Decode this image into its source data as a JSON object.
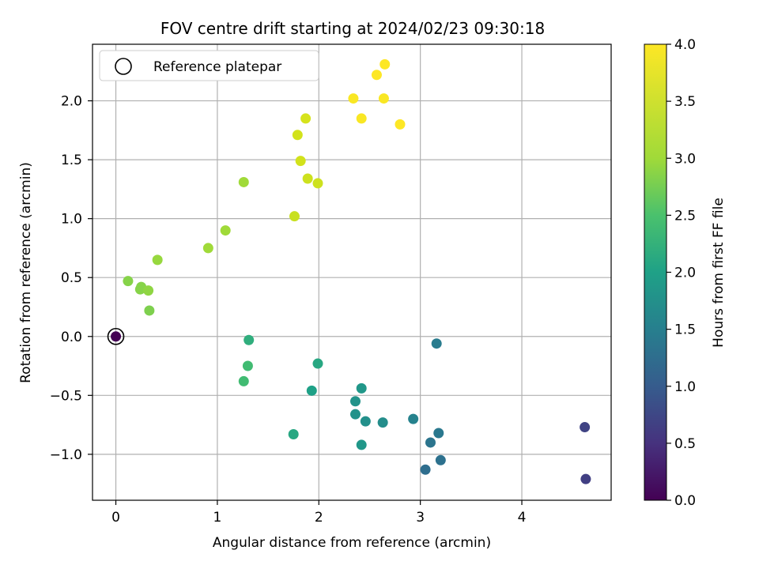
{
  "chart_data": {
    "type": "scatter",
    "title": "FOV centre drift starting at 2024/02/23 09:30:18",
    "xlabel": "Angular distance from reference (arcmin)",
    "ylabel": "Rotation from reference (arcmin)",
    "xlim": [
      -0.23,
      4.88
    ],
    "ylim": [
      -1.39,
      2.48
    ],
    "xticks": [
      0,
      1,
      2,
      3,
      4
    ],
    "xtick_labels": [
      "0",
      "1",
      "2",
      "3",
      "4"
    ],
    "yticks": [
      -1.0,
      -0.5,
      0.0,
      0.5,
      1.0,
      1.5,
      2.0
    ],
    "ytick_labels": [
      "−1.0",
      "−0.5",
      "0.0",
      "0.5",
      "1.0",
      "1.5",
      "2.0"
    ],
    "grid": true,
    "legend": {
      "position": "top-left",
      "entries": [
        "Reference platepar"
      ]
    },
    "reference_point": {
      "x": 0.0,
      "y": 0.0
    },
    "colorbar": {
      "label": "Hours from first FF file",
      "colormap": "viridis",
      "range": [
        0.0,
        4.0
      ],
      "ticks": [
        0.0,
        0.5,
        1.0,
        1.5,
        2.0,
        2.5,
        3.0,
        3.5,
        4.0
      ],
      "tick_labels": [
        "0.0",
        "0.5",
        "1.0",
        "1.5",
        "2.0",
        "2.5",
        "3.0",
        "3.5",
        "4.0"
      ]
    },
    "points": [
      {
        "x": 0.0,
        "y": 0.0,
        "c": 0.0
      },
      {
        "x": 4.63,
        "y": -1.21,
        "c": 0.65
      },
      {
        "x": 4.62,
        "y": -0.77,
        "c": 0.7
      },
      {
        "x": 3.05,
        "y": -1.13,
        "c": 1.25
      },
      {
        "x": 3.2,
        "y": -1.05,
        "c": 1.3
      },
      {
        "x": 3.1,
        "y": -0.9,
        "c": 1.35
      },
      {
        "x": 3.18,
        "y": -0.82,
        "c": 1.4
      },
      {
        "x": 3.16,
        "y": -0.06,
        "c": 1.45
      },
      {
        "x": 2.93,
        "y": -0.7,
        "c": 1.55
      },
      {
        "x": 2.63,
        "y": -0.73,
        "c": 1.7
      },
      {
        "x": 2.46,
        "y": -0.72,
        "c": 1.75
      },
      {
        "x": 2.36,
        "y": -0.66,
        "c": 1.78
      },
      {
        "x": 2.36,
        "y": -0.55,
        "c": 1.8
      },
      {
        "x": 2.42,
        "y": -0.92,
        "c": 1.85
      },
      {
        "x": 2.42,
        "y": -0.44,
        "c": 1.85
      },
      {
        "x": 1.93,
        "y": -0.46,
        "c": 2.0
      },
      {
        "x": 1.99,
        "y": -0.23,
        "c": 2.1
      },
      {
        "x": 1.75,
        "y": -0.83,
        "c": 2.1
      },
      {
        "x": 1.31,
        "y": -0.03,
        "c": 2.2
      },
      {
        "x": 1.3,
        "y": -0.25,
        "c": 2.4
      },
      {
        "x": 1.26,
        "y": -0.38,
        "c": 2.4
      },
      {
        "x": 0.33,
        "y": 0.22,
        "c": 2.8
      },
      {
        "x": 0.12,
        "y": 0.47,
        "c": 2.85
      },
      {
        "x": 0.24,
        "y": 0.4,
        "c": 2.85
      },
      {
        "x": 0.25,
        "y": 0.42,
        "c": 2.85
      },
      {
        "x": 0.32,
        "y": 0.39,
        "c": 2.9
      },
      {
        "x": 0.41,
        "y": 0.65,
        "c": 2.95
      },
      {
        "x": 0.91,
        "y": 0.75,
        "c": 3.0
      },
      {
        "x": 1.08,
        "y": 0.9,
        "c": 3.0
      },
      {
        "x": 1.26,
        "y": 1.31,
        "c": 3.0
      },
      {
        "x": 1.76,
        "y": 1.02,
        "c": 3.4
      },
      {
        "x": 1.99,
        "y": 1.3,
        "c": 3.45
      },
      {
        "x": 1.89,
        "y": 1.34,
        "c": 3.45
      },
      {
        "x": 1.82,
        "y": 1.49,
        "c": 3.5
      },
      {
        "x": 1.79,
        "y": 1.71,
        "c": 3.5
      },
      {
        "x": 1.87,
        "y": 1.85,
        "c": 3.55
      },
      {
        "x": 2.34,
        "y": 2.02,
        "c": 3.95
      },
      {
        "x": 2.42,
        "y": 1.85,
        "c": 3.95
      },
      {
        "x": 2.64,
        "y": 2.02,
        "c": 3.95
      },
      {
        "x": 2.57,
        "y": 2.22,
        "c": 4.0
      },
      {
        "x": 2.65,
        "y": 2.31,
        "c": 4.0
      },
      {
        "x": 2.8,
        "y": 1.8,
        "c": 4.0
      }
    ]
  }
}
